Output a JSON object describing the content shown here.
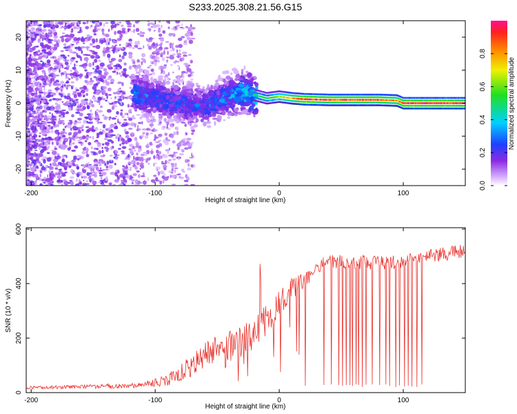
{
  "title": "S233.2025.308.21.56.G15",
  "chart_data": [
    {
      "type": "heatmap",
      "xlabel": "Height of straight line (km)",
      "ylabel": "Frequency (Hz)",
      "xlim": [
        -204,
        150
      ],
      "ylim": [
        -25,
        25
      ],
      "xticks": [
        -200,
        -100,
        0,
        100
      ],
      "yticks": [
        -20,
        -10,
        0,
        10,
        20
      ],
      "colorbar": {
        "label": "Normalized spectral amplitude",
        "ticks": [
          0.0,
          0.2,
          0.4,
          0.6,
          0.8
        ],
        "range": [
          0,
          1
        ],
        "colormap": "rainbow (white-violet-blue-cyan-green-yellow-red-pink)"
      },
      "ridge": {
        "description": "Dominant frequency ridge",
        "x": [
          -115,
          -100,
          -80,
          -60,
          -40,
          -30,
          -20,
          -10,
          0,
          10,
          20,
          40,
          60,
          80,
          95,
          100,
          120,
          150
        ],
        "y": [
          3,
          1.5,
          0,
          -1,
          2,
          3.5,
          2.5,
          1.5,
          2.0,
          1.5,
          1.2,
          1.0,
          1.0,
          1.0,
          0.8,
          0.0,
          0.0,
          0.0
        ],
        "amplitude": [
          0.35,
          0.3,
          0.3,
          0.3,
          0.35,
          0.45,
          0.5,
          0.55,
          0.65,
          0.8,
          0.95,
          0.9,
          0.9,
          0.9,
          0.85,
          0.95,
          0.95,
          0.95
        ]
      }
    },
    {
      "type": "line",
      "xlabel": "Height of straight line (km)",
      "ylabel": "SNR (10 * v/v)",
      "xlim": [
        -204,
        150
      ],
      "ylim": [
        0,
        605
      ],
      "xticks": [
        -200,
        -100,
        0,
        100
      ],
      "yticks": [
        0,
        200,
        400,
        600
      ],
      "color": "#e8302a",
      "envelope": {
        "x": [
          -204,
          -150,
          -110,
          -90,
          -75,
          -60,
          -40,
          -20,
          -10,
          0,
          10,
          20,
          30,
          40,
          60,
          80,
          100,
          120,
          150
        ],
        "y": [
          18,
          22,
          28,
          45,
          90,
          140,
          170,
          210,
          270,
          340,
          380,
          410,
          460,
          480,
          480,
          475,
          480,
          500,
          520
        ],
        "amp": [
          5,
          8,
          10,
          20,
          40,
          50,
          55,
          60,
          60,
          55,
          45,
          35,
          25,
          25,
          25,
          25,
          25,
          25,
          30
        ]
      },
      "dropout_x": [
        21,
        36,
        42,
        48,
        51,
        54,
        57,
        59,
        62,
        64,
        67,
        70,
        75,
        81,
        86,
        89,
        94,
        97,
        101,
        104,
        107,
        111,
        115
      ]
    }
  ]
}
